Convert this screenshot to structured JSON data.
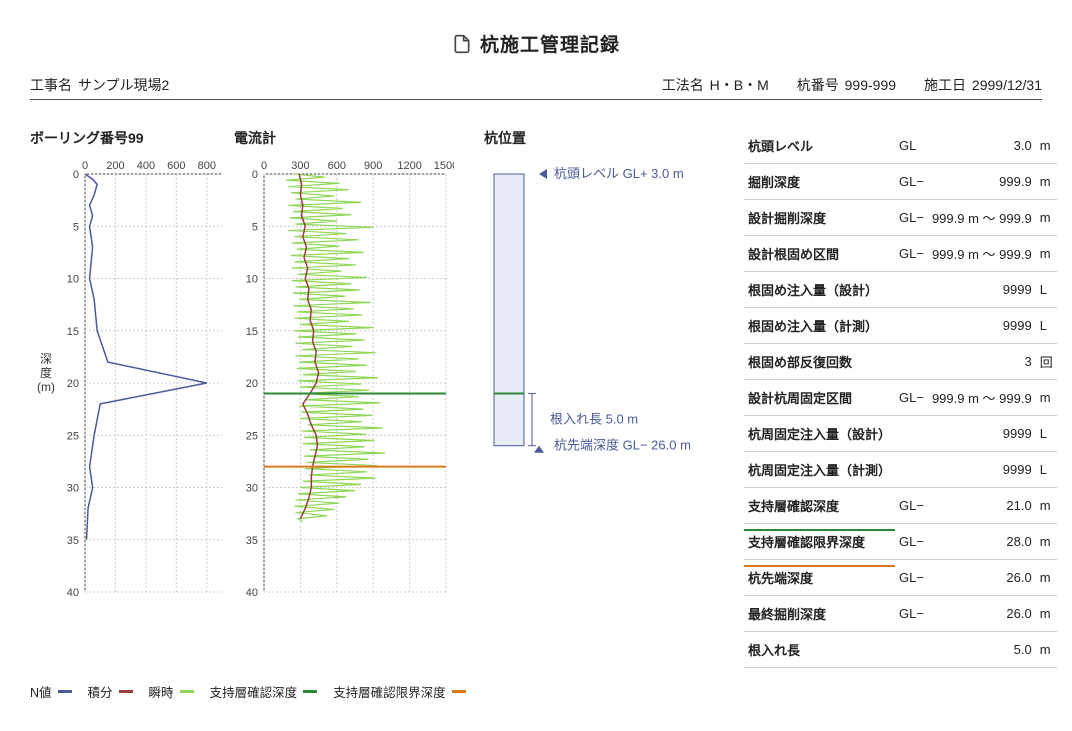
{
  "title": "杭施工管理記録",
  "header": {
    "project_label": "工事名",
    "project_value": "サンプル現場2",
    "method_label": "工法名",
    "method_value": "H・B・M",
    "pile_no_label": "杭番号",
    "pile_no_value": "999-999",
    "date_label": "施工日",
    "date_value": "2999/12/31"
  },
  "boring": {
    "title": "ボーリング番号99",
    "y_label": "深 度 (m)",
    "xlim": [
      0,
      900
    ],
    "xtick_step": 200,
    "ylim": [
      0,
      40
    ],
    "ytick_step": 5,
    "line_color": "#4a5a9a",
    "grid_color": "#cccccc",
    "points": [
      [
        0,
        0
      ],
      [
        50,
        0.5
      ],
      [
        80,
        1
      ],
      [
        60,
        2
      ],
      [
        30,
        3
      ],
      [
        50,
        4
      ],
      [
        30,
        5
      ],
      [
        50,
        7
      ],
      [
        30,
        10
      ],
      [
        60,
        12
      ],
      [
        80,
        15
      ],
      [
        150,
        18
      ],
      [
        800,
        20
      ],
      [
        100,
        22
      ],
      [
        60,
        25
      ],
      [
        30,
        28
      ],
      [
        50,
        30
      ],
      [
        20,
        32
      ],
      [
        10,
        35
      ]
    ]
  },
  "ammeter": {
    "title": "電流計",
    "xlim": [
      0,
      1500
    ],
    "xtick_step": 300,
    "ylim": [
      0,
      40
    ],
    "ytick_step": 5,
    "grid_color": "#cccccc",
    "series": {
      "instant": {
        "color": "#8fd657",
        "points": [
          [
            250,
            0
          ],
          [
            500,
            0.3
          ],
          [
            180,
            0.6
          ],
          [
            620,
            0.9
          ],
          [
            200,
            1.2
          ],
          [
            700,
            1.5
          ],
          [
            220,
            1.8
          ],
          [
            580,
            2.1
          ],
          [
            260,
            2.4
          ],
          [
            800,
            2.7
          ],
          [
            200,
            3.0
          ],
          [
            650,
            3.3
          ],
          [
            240,
            3.6
          ],
          [
            720,
            3.9
          ],
          [
            210,
            4.2
          ],
          [
            600,
            4.5
          ],
          [
            260,
            4.8
          ],
          [
            900,
            5.1
          ],
          [
            200,
            5.4
          ],
          [
            680,
            5.7
          ],
          [
            250,
            6.0
          ],
          [
            780,
            6.3
          ],
          [
            230,
            6.6
          ],
          [
            620,
            6.9
          ],
          [
            270,
            7.2
          ],
          [
            820,
            7.5
          ],
          [
            220,
            7.8
          ],
          [
            700,
            8.1
          ],
          [
            250,
            8.4
          ],
          [
            760,
            8.7
          ],
          [
            230,
            9.0
          ],
          [
            640,
            9.3
          ],
          [
            280,
            9.6
          ],
          [
            850,
            9.9
          ],
          [
            230,
            10.2
          ],
          [
            720,
            10.5
          ],
          [
            260,
            10.8
          ],
          [
            790,
            11.1
          ],
          [
            240,
            11.4
          ],
          [
            670,
            11.7
          ],
          [
            290,
            12.0
          ],
          [
            880,
            12.3
          ],
          [
            240,
            12.6
          ],
          [
            740,
            12.9
          ],
          [
            270,
            13.2
          ],
          [
            810,
            13.5
          ],
          [
            250,
            13.8
          ],
          [
            700,
            14.1
          ],
          [
            300,
            14.4
          ],
          [
            900,
            14.7
          ],
          [
            250,
            15.0
          ],
          [
            760,
            15.3
          ],
          [
            280,
            15.6
          ],
          [
            830,
            15.9
          ],
          [
            260,
            16.2
          ],
          [
            730,
            16.5
          ],
          [
            310,
            16.8
          ],
          [
            920,
            17.1
          ],
          [
            260,
            17.4
          ],
          [
            780,
            17.7
          ],
          [
            290,
            18.0
          ],
          [
            850,
            18.3
          ],
          [
            270,
            18.6
          ],
          [
            760,
            18.9
          ],
          [
            320,
            19.2
          ],
          [
            940,
            19.5
          ],
          [
            280,
            19.8
          ],
          [
            800,
            20.1
          ],
          [
            300,
            20.4
          ],
          [
            870,
            20.7
          ],
          [
            280,
            21.0
          ],
          [
            780,
            21.3
          ],
          [
            340,
            21.6
          ],
          [
            960,
            21.9
          ],
          [
            290,
            22.2
          ],
          [
            820,
            22.5
          ],
          [
            310,
            22.8
          ],
          [
            890,
            23.1
          ],
          [
            300,
            23.4
          ],
          [
            810,
            23.7
          ],
          [
            360,
            24.0
          ],
          [
            980,
            24.3
          ],
          [
            310,
            24.6
          ],
          [
            840,
            24.9
          ],
          [
            330,
            25.2
          ],
          [
            910,
            25.5
          ],
          [
            320,
            25.8
          ],
          [
            830,
            26.1
          ],
          [
            380,
            26.4
          ],
          [
            1000,
            26.7
          ],
          [
            330,
            27.0
          ],
          [
            860,
            27.3
          ],
          [
            350,
            27.6
          ],
          [
            930,
            27.9
          ],
          [
            340,
            28.2
          ],
          [
            850,
            28.5
          ],
          [
            370,
            28.8
          ],
          [
            920,
            29.1
          ],
          [
            320,
            29.4
          ],
          [
            800,
            29.7
          ],
          [
            300,
            30.0
          ],
          [
            750,
            30.3
          ],
          [
            280,
            30.6
          ],
          [
            680,
            30.9
          ],
          [
            260,
            31.2
          ],
          [
            620,
            31.5
          ],
          [
            250,
            31.8
          ],
          [
            580,
            32.1
          ],
          [
            260,
            32.4
          ],
          [
            520,
            32.7
          ],
          [
            280,
            33.0
          ],
          [
            320,
            33.3
          ]
        ]
      },
      "integral": {
        "color": "#9c3d3d",
        "points": [
          [
            290,
            0
          ],
          [
            310,
            1
          ],
          [
            300,
            2
          ],
          [
            320,
            3
          ],
          [
            310,
            4
          ],
          [
            340,
            5
          ],
          [
            320,
            6
          ],
          [
            350,
            7
          ],
          [
            330,
            8
          ],
          [
            360,
            9
          ],
          [
            340,
            10
          ],
          [
            370,
            11
          ],
          [
            360,
            12
          ],
          [
            390,
            13
          ],
          [
            380,
            14
          ],
          [
            410,
            15
          ],
          [
            400,
            16
          ],
          [
            430,
            17
          ],
          [
            420,
            18
          ],
          [
            450,
            19
          ],
          [
            430,
            20
          ],
          [
            380,
            21
          ],
          [
            320,
            22
          ],
          [
            360,
            23
          ],
          [
            390,
            24
          ],
          [
            430,
            25
          ],
          [
            440,
            26
          ],
          [
            420,
            27
          ],
          [
            400,
            28
          ],
          [
            390,
            29
          ],
          [
            390,
            30
          ],
          [
            370,
            31
          ],
          [
            340,
            32
          ],
          [
            300,
            33
          ]
        ]
      }
    },
    "support_depth": {
      "value": 21.0,
      "color": "#2a8a3a"
    },
    "support_limit_depth": {
      "value": 28.0,
      "color": "#d97a1a"
    }
  },
  "pile_pos": {
    "title": "杭位置",
    "top_label": "杭頭レベル GL+ 3.0 m",
    "embed_label": "根入れ長 5.0 m",
    "tip_label": "杭先端深度 GL− 26.0 m",
    "fill_color": "#e8ecf7",
    "stroke_color": "#4a5a9a",
    "support_color": "#2a8a3a",
    "ylim": [
      0,
      40
    ],
    "pile_top": 0,
    "support_depth": 21.0,
    "pile_tip": 26.0
  },
  "legend": {
    "n_value": {
      "label": "N値",
      "color": "#4a5a9a"
    },
    "integral": {
      "label": "積分",
      "color": "#9c3d3d"
    },
    "instant": {
      "label": "瞬時",
      "color": "#8fd657"
    },
    "support": {
      "label": "支持層確認深度",
      "color": "#2a8a3a"
    },
    "support_limit": {
      "label": "支持層確認限界深度",
      "color": "#d97a1a"
    }
  },
  "table": [
    {
      "label": "杭頭レベル",
      "pref": "GL",
      "val": "3.0",
      "unit": "m"
    },
    {
      "label": "掘削深度",
      "pref": "GL−",
      "val": "999.9",
      "unit": "m"
    },
    {
      "label": "設計掘削深度",
      "pref": "GL−",
      "val": "999.9 m ～ 999.9",
      "unit": "m"
    },
    {
      "label": "設計根固め区間",
      "pref": "GL−",
      "val": "999.9 m ～ 999.9",
      "unit": "m"
    },
    {
      "label": "根固め注入量（設計）",
      "pref": "",
      "val": "9999",
      "unit": "L"
    },
    {
      "label": "根固め注入量（計測）",
      "pref": "",
      "val": "9999",
      "unit": "L"
    },
    {
      "label": "根固め部反復回数",
      "pref": "",
      "val": "3",
      "unit": "回"
    },
    {
      "label": "設計杭周固定区間",
      "pref": "GL−",
      "val": "999.9 m ～ 999.9",
      "unit": "m"
    },
    {
      "label": "杭周固定注入量（設計）",
      "pref": "",
      "val": "9999",
      "unit": "L"
    },
    {
      "label": "杭周固定注入量（計測）",
      "pref": "",
      "val": "9999",
      "unit": "L"
    },
    {
      "label": "支持層確認深度",
      "pref": "GL−",
      "val": "21.0",
      "unit": "m",
      "uline": "#2a8a3a"
    },
    {
      "label": "支持層確認限界深度",
      "pref": "GL−",
      "val": "28.0",
      "unit": "m",
      "uline": "#d97a1a"
    },
    {
      "label": "杭先端深度",
      "pref": "GL−",
      "val": "26.0",
      "unit": "m"
    },
    {
      "label": "最終掘削深度",
      "pref": "GL−",
      "val": "26.0",
      "unit": "m"
    },
    {
      "label": "根入れ長",
      "pref": "",
      "val": "5.0",
      "unit": "m"
    }
  ],
  "colors": {
    "text": "#222222",
    "divider": "#555555"
  }
}
